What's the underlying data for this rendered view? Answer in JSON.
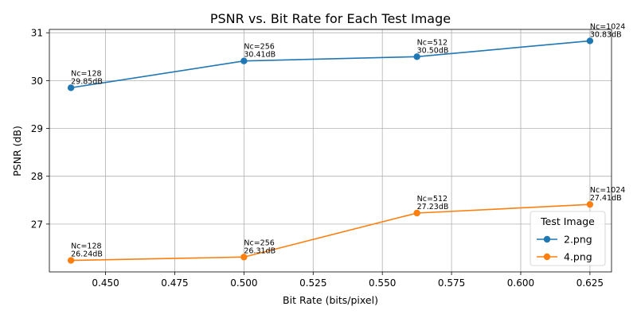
{
  "chart_data": {
    "type": "line",
    "title": "PSNR vs. Bit Rate for Each Test Image",
    "xlabel": "Bit Rate (bits/pixel)",
    "ylabel": "PSNR (dB)",
    "xlim": [
      0.4297,
      0.6328
    ],
    "ylim": [
      26.0,
      31.07
    ],
    "xticks": [
      "0.450",
      "0.475",
      "0.500",
      "0.525",
      "0.550",
      "0.575",
      "0.600",
      "0.625"
    ],
    "xtick_values": [
      0.45,
      0.475,
      0.5,
      0.525,
      0.55,
      0.575,
      0.6,
      0.625
    ],
    "yticks": [
      "27",
      "28",
      "29",
      "30",
      "31"
    ],
    "ytick_values": [
      27,
      28,
      29,
      30,
      31
    ],
    "grid": true,
    "legend": {
      "title": "Test Image",
      "placement": "bottom-right"
    },
    "series": [
      {
        "name": "2.png",
        "color": "#1f77b4",
        "x": [
          0.4375,
          0.5,
          0.5625,
          0.625
        ],
        "y": [
          29.85,
          30.41,
          30.5,
          30.83
        ],
        "annotations": [
          [
            "Nc=128",
            "29.85dB"
          ],
          [
            "Nc=256",
            "30.41dB"
          ],
          [
            "Nc=512",
            "30.50dB"
          ],
          [
            "Nc=1024",
            "30.83dB"
          ]
        ]
      },
      {
        "name": "4.png",
        "color": "#ff7f0e",
        "x": [
          0.4375,
          0.5,
          0.5625,
          0.625
        ],
        "y": [
          26.24,
          26.31,
          27.23,
          27.41
        ],
        "annotations": [
          [
            "Nc=128",
            "26.24dB"
          ],
          [
            "Nc=256",
            "26.31dB"
          ],
          [
            "Nc=512",
            "27.23dB"
          ],
          [
            "Nc=1024",
            "27.41dB"
          ]
        ]
      }
    ]
  }
}
